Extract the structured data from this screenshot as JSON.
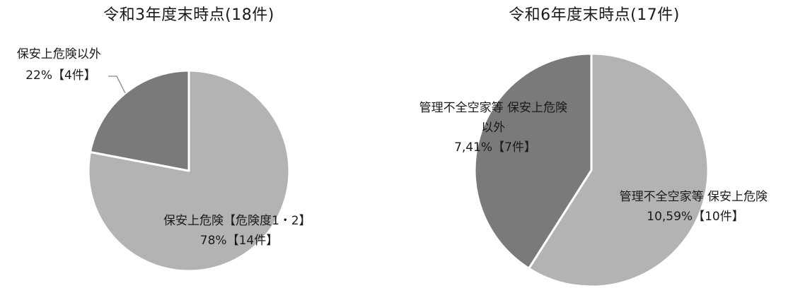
{
  "colors": {
    "light_gray": "#b3b3b3",
    "dark_gray": "#7a7a7a",
    "separator": "#ffffff",
    "text": "#1a1a1a",
    "leader": "#999999"
  },
  "chart_data": [
    {
      "type": "pie",
      "title": "令和3年度末時点(18件)",
      "slices": [
        {
          "value": 78,
          "count": 14,
          "color": "#b3b3b3",
          "label_lines": [
            "保安上危険【危険度1・2】",
            "78%【14件】"
          ]
        },
        {
          "value": 22,
          "count": 4,
          "color": "#7a7a7a",
          "label_lines": [
            "保安上危険以外",
            "22%【4件】"
          ]
        }
      ]
    },
    {
      "type": "pie",
      "title": "令和6年度末時点(17件)",
      "slices": [
        {
          "value": 59,
          "count": 10,
          "color": "#b3b3b3",
          "label_lines": [
            "管理不全空家等 保安上危険",
            "10,59%【10件】"
          ]
        },
        {
          "value": 41,
          "count": 7,
          "color": "#7a7a7a",
          "label_lines": [
            "管理不全空家等 保安上危険",
            "以外",
            "7,41%【7件】"
          ]
        }
      ]
    }
  ]
}
